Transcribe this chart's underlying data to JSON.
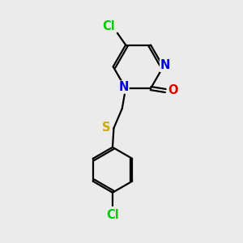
{
  "bg_color": "#ebebeb",
  "bond_color": "#000000",
  "bond_width": 1.6,
  "atom_colors": {
    "Cl": "#00cc00",
    "N": "#0000dd",
    "O": "#dd0000",
    "S": "#ccaa00",
    "C": "#000000"
  },
  "font_size": 10.5
}
